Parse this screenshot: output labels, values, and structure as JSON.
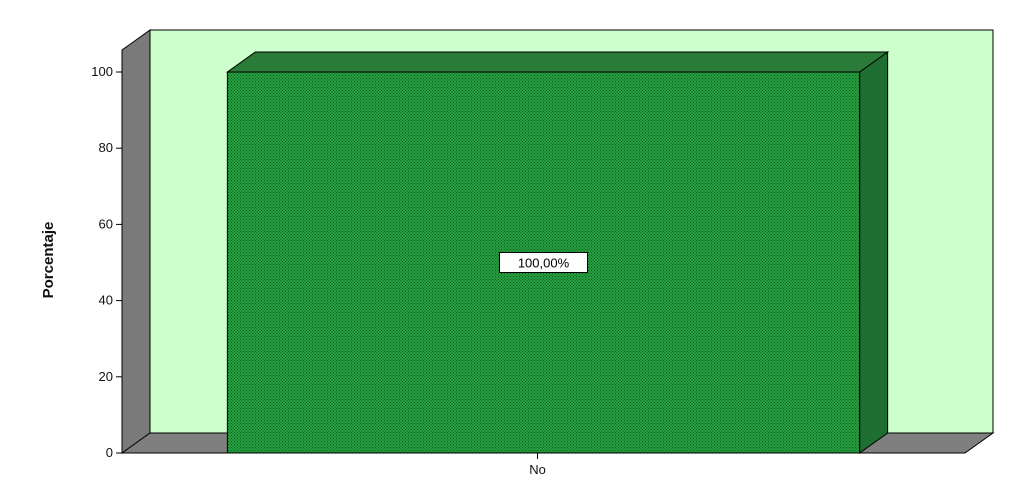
{
  "chart_data": {
    "type": "bar",
    "categories": [
      "No"
    ],
    "values": [
      100
    ],
    "data_labels": [
      "100,00%"
    ],
    "ylabel": "Porcentaje",
    "xlabel": "",
    "ylim": [
      0,
      100
    ],
    "yticks": [
      0,
      20,
      40,
      60,
      80,
      100
    ],
    "grid": false,
    "legend": "none",
    "style": "3d",
    "colors": {
      "bar_front": "#27a040",
      "bar_side": "#1f6e32",
      "bar_top": "#2a7a38",
      "back_wall": "#ccffcc",
      "side_wall": "#7a7a7a",
      "floor": "#7f7f7f",
      "outline": "#000000"
    }
  }
}
